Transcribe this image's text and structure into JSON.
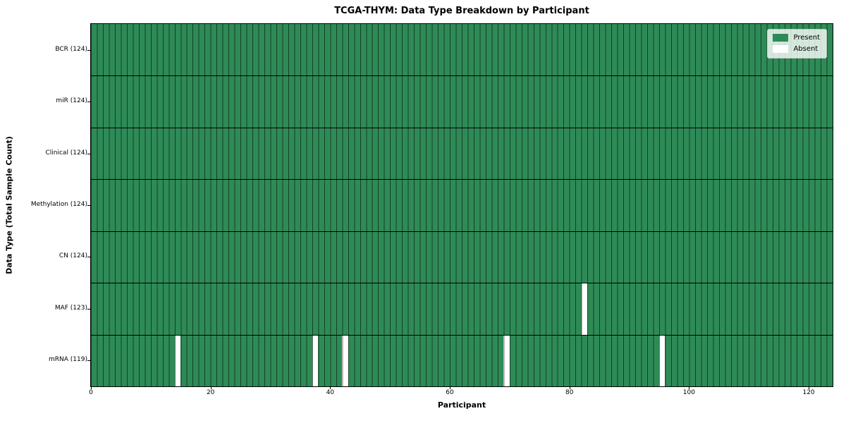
{
  "chart_data": {
    "type": "heatmap",
    "title": "TCGA-THYM: Data Type Breakdown by Participant",
    "xlabel": "Participant",
    "ylabel": "Data Type (Total Sample Count)",
    "n_participants": 124,
    "x_ticks": [
      0,
      20,
      40,
      60,
      80,
      100,
      120
    ],
    "xlim": [
      0,
      124
    ],
    "grid": false,
    "legend_position": "upper right",
    "rows": [
      {
        "label": "BCR (124)",
        "data_type": "BCR",
        "present_count": 124,
        "absent_participants": []
      },
      {
        "label": "miR (124)",
        "data_type": "miR",
        "present_count": 124,
        "absent_participants": []
      },
      {
        "label": "Clinical (124)",
        "data_type": "Clinical",
        "present_count": 124,
        "absent_participants": []
      },
      {
        "label": "Methylation (124)",
        "data_type": "Methylation",
        "present_count": 124,
        "absent_participants": []
      },
      {
        "label": "CN (124)",
        "data_type": "CN",
        "present_count": 124,
        "absent_participants": []
      },
      {
        "label": "MAF (123)",
        "data_type": "MAF",
        "present_count": 123,
        "absent_participants": [
          82
        ]
      },
      {
        "label": "mRNA (119)",
        "data_type": "mRNA",
        "present_count": 119,
        "absent_participants": [
          14,
          37,
          42,
          69,
          95
        ]
      }
    ],
    "legend": [
      {
        "label": "Present",
        "color": "#2e8b57"
      },
      {
        "label": "Absent",
        "color": "#ffffff"
      }
    ],
    "colors": {
      "present": "#2e8b57",
      "absent": "#ffffff",
      "cell_edge": "rgba(0,0,0,0.55)",
      "frame": "#000000"
    }
  }
}
